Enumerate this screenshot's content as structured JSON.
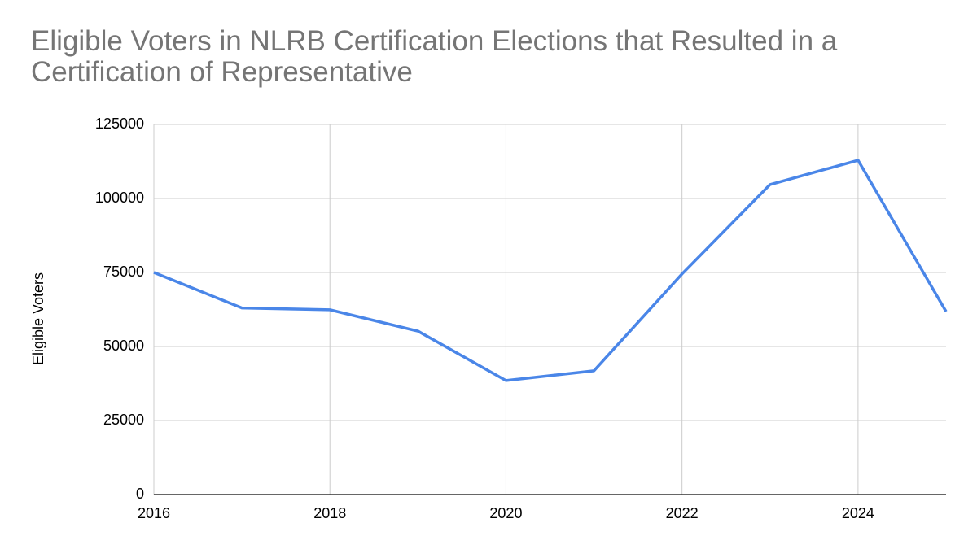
{
  "chart_data": {
    "type": "line",
    "title": "Eligible Voters in NLRB Certification Elections that Resulted in a Certification of Representative",
    "y_label": "Eligible Voters",
    "x": [
      2016,
      2017,
      2018,
      2019,
      2020,
      2021,
      2022,
      2023,
      2024,
      2025
    ],
    "series": [
      {
        "name": "Eligible Voters",
        "color": "#4a86e8",
        "values": [
          75000,
          63000,
          62400,
          55200,
          38500,
          41800,
          74500,
          104700,
          112900,
          61800
        ]
      }
    ],
    "xlim": [
      2016,
      2025
    ],
    "xticks": [
      2016,
      2018,
      2020,
      2022,
      2024
    ],
    "ylim": [
      0,
      125000
    ],
    "yticks": [
      0,
      25000,
      50000,
      75000,
      100000,
      125000
    ],
    "grid": true
  }
}
